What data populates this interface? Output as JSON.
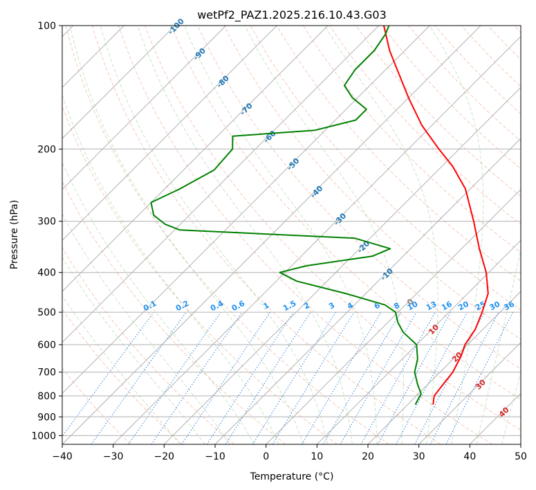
{
  "chart_data": {
    "type": "line",
    "title": "wetPf2_PAZ1.2025.216.10.43.G03",
    "xlabel": "Temperature (°C)",
    "ylabel": "Pressure (hPa)",
    "xlim": [
      -40,
      50
    ],
    "ylim": [
      1050,
      100
    ],
    "y_scale": "log",
    "skew": true,
    "x_ticks": [
      "−40",
      "−30",
      "−20",
      "−10",
      "0",
      "10",
      "20",
      "30",
      "40",
      "50"
    ],
    "y_ticks": [
      "100",
      "200",
      "300",
      "400",
      "500",
      "600",
      "700",
      "800",
      "900",
      "1000"
    ],
    "series": [
      {
        "color": "#ff0000",
        "points": [
          {
            "p": 840,
            "t": 25
          },
          {
            "p": 800,
            "t": 23.5
          },
          {
            "p": 750,
            "t": 23
          },
          {
            "p": 700,
            "t": 22.5
          },
          {
            "p": 640,
            "t": 21
          },
          {
            "p": 600,
            "t": 19.5
          },
          {
            "p": 550,
            "t": 18.5
          },
          {
            "p": 500,
            "t": 16.5
          },
          {
            "p": 450,
            "t": 14
          },
          {
            "p": 400,
            "t": 9.5
          },
          {
            "p": 350,
            "t": 3.5
          },
          {
            "p": 300,
            "t": -3
          },
          {
            "p": 250,
            "t": -11
          },
          {
            "p": 220,
            "t": -18
          },
          {
            "p": 200,
            "t": -24
          },
          {
            "p": 175,
            "t": -32
          },
          {
            "p": 150,
            "t": -40
          },
          {
            "p": 130,
            "t": -47
          },
          {
            "p": 115,
            "t": -53
          },
          {
            "p": 100,
            "t": -59
          }
        ]
      },
      {
        "color": "#008000",
        "points": [
          {
            "p": 840,
            "t": 21.5
          },
          {
            "p": 790,
            "t": 20.5
          },
          {
            "p": 750,
            "t": 18
          },
          {
            "p": 700,
            "t": 15
          },
          {
            "p": 650,
            "t": 13
          },
          {
            "p": 600,
            "t": 10
          },
          {
            "p": 560,
            "t": 5
          },
          {
            "p": 530,
            "t": 2
          },
          {
            "p": 500,
            "t": -0.5
          },
          {
            "p": 480,
            "t": -4
          },
          {
            "p": 450,
            "t": -14
          },
          {
            "p": 420,
            "t": -26
          },
          {
            "p": 400,
            "t": -31
          },
          {
            "p": 385,
            "t": -27
          },
          {
            "p": 365,
            "t": -16
          },
          {
            "p": 350,
            "t": -14
          },
          {
            "p": 330,
            "t": -23
          },
          {
            "p": 315,
            "t": -59
          },
          {
            "p": 305,
            "t": -63
          },
          {
            "p": 290,
            "t": -67
          },
          {
            "p": 270,
            "t": -70
          },
          {
            "p": 250,
            "t": -67
          },
          {
            "p": 225,
            "t": -64
          },
          {
            "p": 200,
            "t": -64.5
          },
          {
            "p": 186,
            "t": -67
          },
          {
            "p": 180,
            "t": -52
          },
          {
            "p": 170,
            "t": -46
          },
          {
            "p": 160,
            "t": -46
          },
          {
            "p": 150,
            "t": -51
          },
          {
            "p": 140,
            "t": -55
          },
          {
            "p": 128,
            "t": -56
          },
          {
            "p": 115,
            "t": -56
          },
          {
            "p": 105,
            "t": -57
          },
          {
            "p": 100,
            "t": -58
          }
        ]
      }
    ],
    "grid": true,
    "background_lines": {
      "isotherms": true,
      "dry_adiabats_color": "#e06030",
      "moist_adiabats_color": "#60b060",
      "mixing_ratio_color": "#2080e0"
    },
    "mixing_ratio_labels": [
      "0.1",
      "0.2",
      "0.4",
      "0.6",
      "1",
      "1.5",
      "2",
      "3",
      "4",
      "6",
      "8",
      "10",
      "13",
      "16",
      "20",
      "25",
      "30",
      "36"
    ],
    "mixing_ratio_values": [
      0.1,
      0.2,
      0.4,
      0.6,
      1,
      1.5,
      2,
      3,
      4,
      6,
      8,
      10,
      13,
      16,
      20,
      25,
      30,
      36
    ],
    "isotherm_labels_blue": [
      {
        "t": -100,
        "label": "-100"
      },
      {
        "t": -90,
        "label": "-90"
      },
      {
        "t": -80,
        "label": "-80"
      },
      {
        "t": -70,
        "label": "-70"
      },
      {
        "t": -60,
        "label": "-60"
      },
      {
        "t": -50,
        "label": "-50"
      },
      {
        "t": -40,
        "label": "-40"
      },
      {
        "t": -30,
        "label": "-30"
      },
      {
        "t": -20,
        "label": "-20"
      },
      {
        "t": -10,
        "label": "-10"
      }
    ],
    "isotherm_label_zero": {
      "t": 0,
      "label": "0"
    },
    "isotherm_labels_red": [
      {
        "t": 10,
        "label": "10"
      },
      {
        "t": 20,
        "label": "20"
      },
      {
        "t": 30,
        "label": "30"
      },
      {
        "t": 40,
        "label": "40"
      }
    ],
    "label_colors": {
      "cold": "#1f77b4",
      "zero": "#808080",
      "warm": "#d62728",
      "mixing": "#2090f0"
    }
  }
}
